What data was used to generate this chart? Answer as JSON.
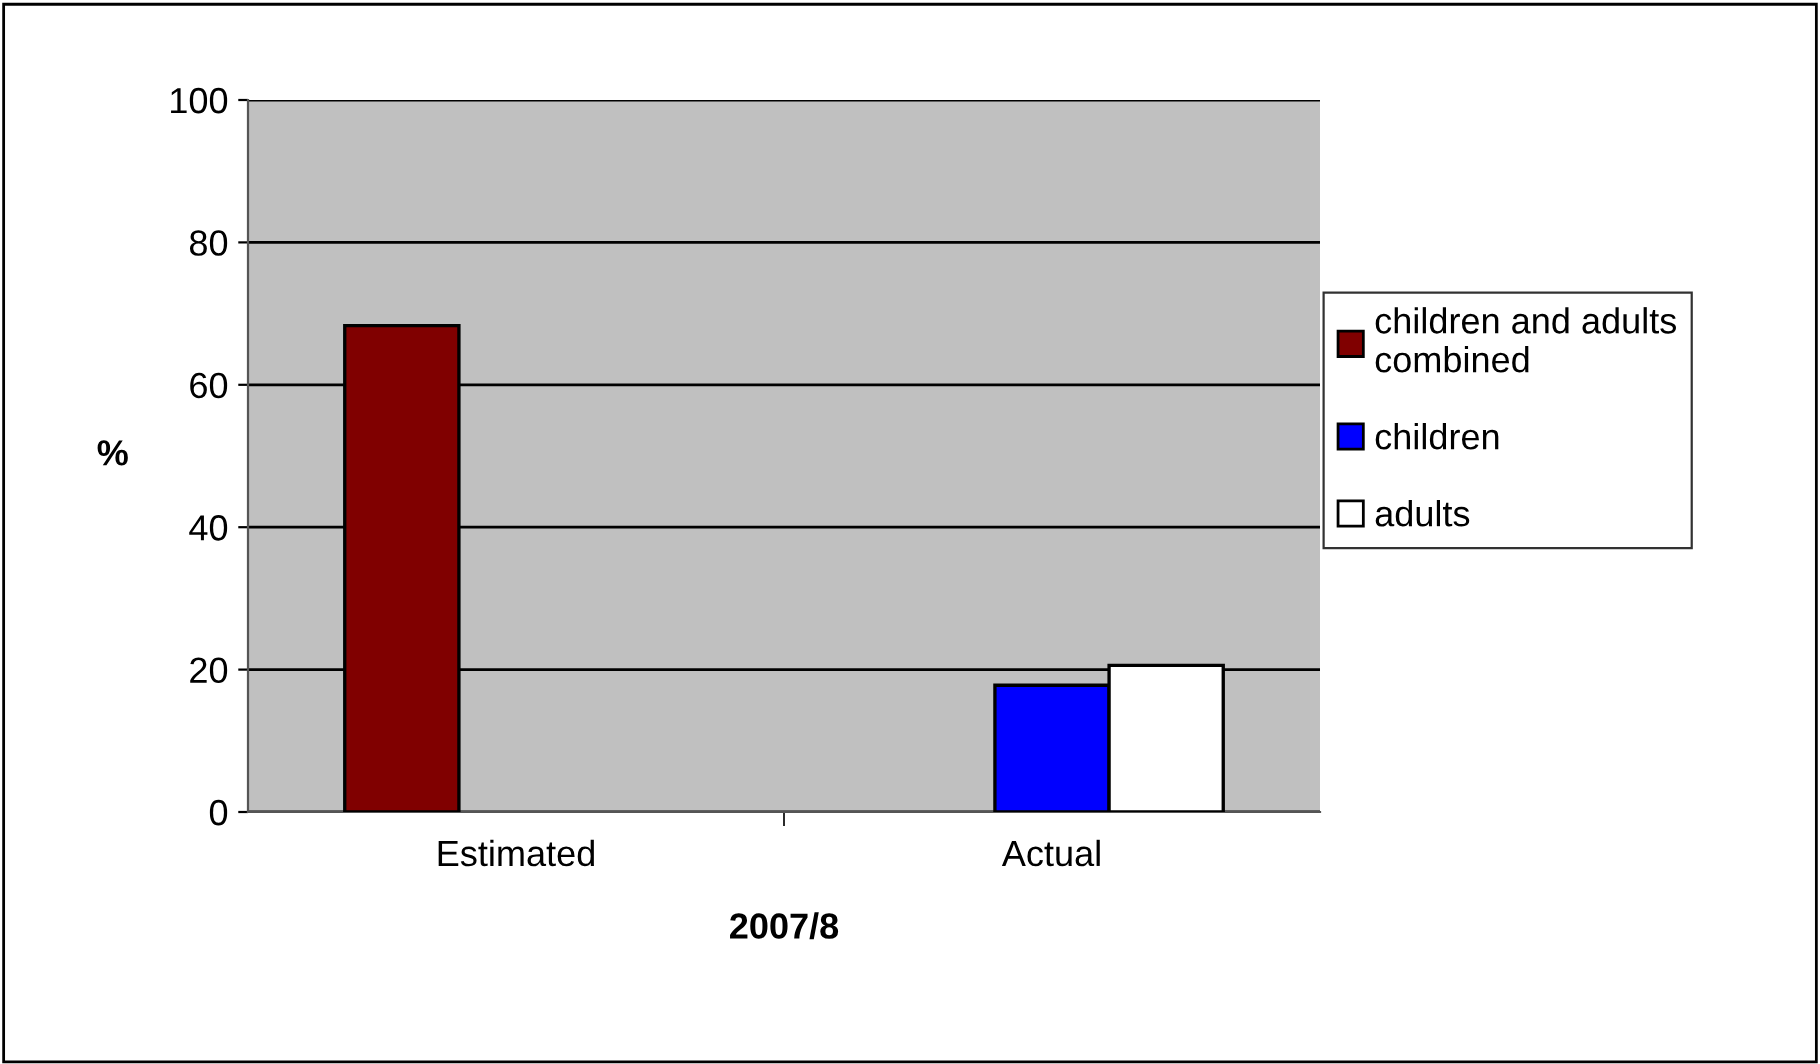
{
  "chart_data": {
    "type": "bar",
    "xlabel": "2007/8",
    "ylabel": "%",
    "categories": [
      "Estimated",
      "Actual"
    ],
    "series": [
      {
        "name": "children and adults\ncombined",
        "color": "#800000",
        "values": [
          68.3,
          null
        ]
      },
      {
        "name": "children",
        "color": "#0000ff",
        "values": [
          null,
          17.8
        ]
      },
      {
        "name": "adults",
        "color": "#ffffff",
        "values": [
          null,
          20.6
        ]
      }
    ],
    "ylim": [
      0,
      100
    ],
    "yticks": [
      0,
      20,
      40,
      60,
      80,
      100
    ],
    "grid": "y",
    "legend": "right"
  }
}
